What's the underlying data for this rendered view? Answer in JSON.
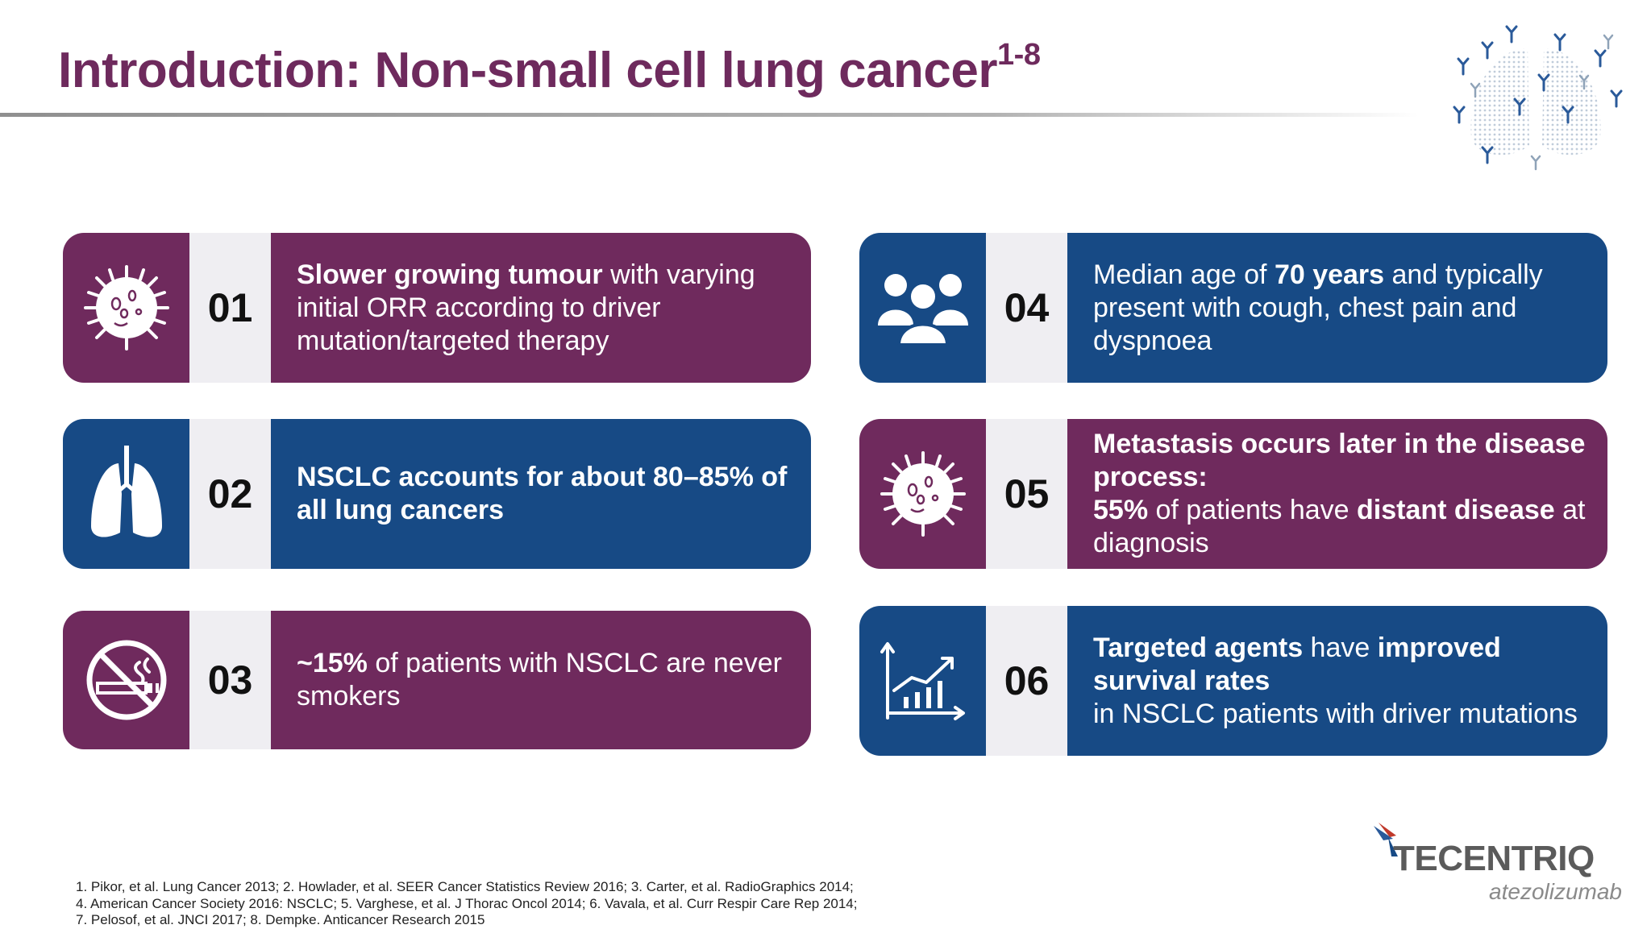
{
  "title": {
    "text": "Introduction: Non-small cell lung cancer",
    "superscript": "1-8"
  },
  "cards": [
    {
      "number": "01",
      "icon": "tumour-cell-icon",
      "color": "#6f2a5d",
      "segments": [
        {
          "text": "Slower growing tumour",
          "bold": true
        },
        {
          "text": " with varying initial ORR according to driver mutation/targeted therapy",
          "bold": false
        }
      ]
    },
    {
      "number": "02",
      "icon": "lungs-icon",
      "color": "#174a85",
      "segments": [
        {
          "text": "NSCLC accounts for about 80–85% of all lung cancers",
          "bold": true
        }
      ]
    },
    {
      "number": "03",
      "icon": "no-smoking-icon",
      "color": "#6f2a5d",
      "segments": [
        {
          "text": "~15%",
          "bold": true
        },
        {
          "text": " of patients with NSCLC are never smokers",
          "bold": false
        }
      ]
    },
    {
      "number": "04",
      "icon": "people-group-icon",
      "color": "#174a85",
      "segments": [
        {
          "text": "Median age of ",
          "bold": false
        },
        {
          "text": "70 years",
          "bold": true
        },
        {
          "text": " and typically present with cough, chest pain and dyspnoea",
          "bold": false
        }
      ]
    },
    {
      "number": "05",
      "icon": "tumour-cell-icon",
      "color": "#6f2a5d",
      "segments": [
        {
          "text": "Metastasis occurs later in the disease process:",
          "bold": true
        },
        {
          "text": "\n",
          "bold": false
        },
        {
          "text": "55%",
          "bold": true
        },
        {
          "text": " of patients have ",
          "bold": false
        },
        {
          "text": "distant disease",
          "bold": true
        },
        {
          "text": " at diagnosis",
          "bold": false
        }
      ]
    },
    {
      "number": "06",
      "icon": "growth-chart-icon",
      "color": "#174a85",
      "segments": [
        {
          "text": "Targeted agents",
          "bold": true
        },
        {
          "text": " have ",
          "bold": false
        },
        {
          "text": "improved survival rates",
          "bold": true
        },
        {
          "text": "\n",
          "bold": false
        },
        {
          "text": "in NSCLC patients with driver mutations",
          "bold": false
        }
      ]
    }
  ],
  "references": "1. Pikor, et al. Lung Cancer 2013; 2. Howlader, et al. SEER Cancer Statistics Review 2016; 3. Carter, et al. RadioGraphics 2014; 4. American Cancer Society 2016: NSCLC; 5. Varghese, et al. J Thorac Oncol 2014; 6. Vavala, et al. Curr Respir Care Rep 2014; 7. Pelosof, et al. JNCI 2017; 8. Dempke. Anticancer Research 2015",
  "logo": {
    "name": "TECENTRIQ",
    "subtitle": "atezolizumab",
    "icon": "tecentriq-logo-icon"
  },
  "decor": {
    "icon": "lungs-antibodies-illustration"
  }
}
